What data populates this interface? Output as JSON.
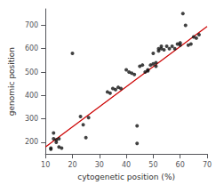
{
  "chart_data": {
    "type": "scatter",
    "xlabel": "cytogenetic position (%)",
    "ylabel": "genomic position",
    "series": [
      {
        "type": "line",
        "line_style": "solid",
        "color": "#cc0000",
        "x": [
          10,
          70
        ],
        "values": [
          180,
          695
        ]
      },
      {
        "type": "scatter",
        "marker": "circle",
        "color": "#111111",
        "x": [
          12,
          12,
          13,
          13,
          14,
          14,
          15,
          15,
          16,
          20,
          23,
          24,
          25,
          26,
          33,
          34,
          35,
          36,
          37,
          38,
          40,
          41,
          42,
          43,
          44,
          44,
          45,
          46,
          47,
          48,
          48,
          49,
          50,
          50,
          51,
          51,
          52,
          52,
          53,
          53,
          54,
          55,
          56,
          57,
          58,
          59,
          60,
          60,
          61,
          62,
          63,
          64,
          65,
          66,
          67
        ],
        "values": [
          175,
          170,
          240,
          215,
          210,
          200,
          215,
          180,
          175,
          580,
          310,
          275,
          220,
          305,
          415,
          410,
          430,
          425,
          435,
          430,
          510,
          500,
          495,
          490,
          270,
          195,
          525,
          530,
          500,
          510,
          505,
          530,
          580,
          535,
          540,
          525,
          600,
          590,
          600,
          610,
          595,
          610,
          600,
          610,
          600,
          620,
          625,
          615,
          750,
          700,
          615,
          620,
          650,
          645,
          660
        ]
      }
    ],
    "xlim": [
      10,
      70
    ],
    "ylim": [
      150,
      770
    ],
    "xticks": [
      10,
      20,
      30,
      40,
      50,
      60,
      70
    ],
    "yticks": [
      200,
      300,
      400,
      500,
      600,
      700
    ],
    "grid": false,
    "background": "#ffffff"
  }
}
